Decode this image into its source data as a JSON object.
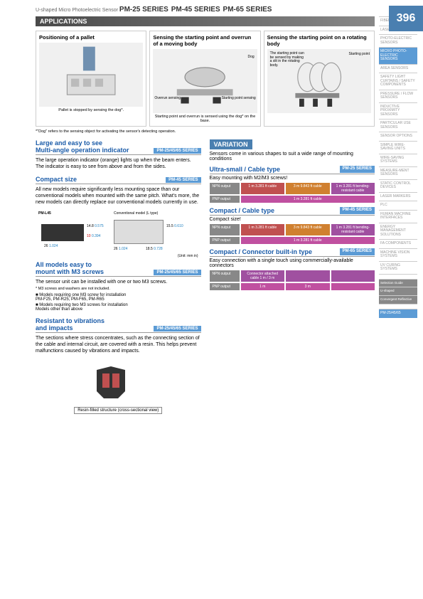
{
  "page_number": "396",
  "header_line": "U-shaped Micro Photoelectric Sensor",
  "header_series": [
    "PM-25 SERIES",
    "PM-45 SERIES",
    "PM-65 SERIES"
  ],
  "sidebar": [
    {
      "t": "FIBER SENSORS"
    },
    {
      "t": "LASER SENSORS"
    },
    {
      "t": "PHOTO-ELECTRIC SENSORS"
    },
    {
      "t": "MICRO PHOTO-ELECTRIC SENSORS",
      "hl": true
    },
    {
      "t": "AREA SENSORS"
    },
    {
      "t": "SAFETY LIGHT CURTAINS / SAFETY COMPONENTS"
    },
    {
      "t": "PRESSURE / FLOW SENSORS"
    },
    {
      "t": "INDUCTIVE PROXIMITY SENSORS"
    },
    {
      "t": "PARTICULAR USE SENSORS"
    },
    {
      "t": "SENSOR OPTIONS"
    },
    {
      "t": "SIMPLE WIRE-SAVING UNITS"
    },
    {
      "t": "WIRE-SAVING SYSTEMS"
    },
    {
      "t": "MEASURE-MENT SENSORS"
    },
    {
      "t": "STATIC CONTROL DEVICES"
    },
    {
      "t": "LASER MARKERS"
    },
    {
      "t": "PLC"
    },
    {
      "t": "HUMAN MACHINE INTERFACES"
    },
    {
      "t": "ENERGY MANAGEMENT SOLUTIONS"
    },
    {
      "t": "FA COMPONENTS"
    },
    {
      "t": "MACHINE VISION SYSTEMS"
    },
    {
      "t": "UV CURING SYSTEMS"
    },
    {
      "t": ""
    },
    {
      "t": "Selection Guide",
      "sel": true
    },
    {
      "t": "U-shaped",
      "sel": true
    },
    {
      "t": "Convergent Reflective",
      "sel": true
    },
    {
      "t": ""
    },
    {
      "t": "PM-25/45/65",
      "hl": true
    }
  ],
  "applications_header": "APPLICATIONS",
  "applications": [
    {
      "title": "Positioning of a pallet",
      "caption": "Pallet is stopped by sensing the dog*."
    },
    {
      "title": "Sensing the starting point and overrun of a moving body",
      "caption": "Starting point and overrun is sensed using the dog* on the base.",
      "labels": [
        "Dog",
        "Overrun sensing",
        "Starting point sensing"
      ]
    },
    {
      "title": "Sensing the starting point on a rotating body",
      "caption": "",
      "note": "The starting point can be sensed by making a slit in the rotating body.",
      "labels": [
        "Starting point"
      ]
    }
  ],
  "dog_footnote": "*\"Dog\" refers to the sensing object for activating the sensor's detecting operation.",
  "features_left": [
    {
      "title1": "Large and easy to see",
      "title2": "Multi-angle operation indicator",
      "tag": "PM-25/45/65 SERIES",
      "body": "The large operation indicator (orange) lights up when the beam enters. The indicator is easy to see from above and from the sides."
    },
    {
      "title1": "Compact size",
      "tag": "PM-45 SERIES",
      "body": "All new models require significantly less mounting space than our conventional models when mounted with the same pitch. What's more, the new models can directly replace our conventional models currently in use.",
      "diagram": {
        "left_label": "PM-L45",
        "right_label": "Conventional model (L type)",
        "dims": [
          {
            "v": "14.8",
            "alt": "0.575"
          },
          {
            "v": "10",
            "alt": "0.394"
          },
          {
            "v": "26",
            "alt": "1.024"
          },
          {
            "v": "15.5",
            "alt": "0.610"
          },
          {
            "v": "26",
            "alt": "1.024"
          },
          {
            "v": "18.5",
            "alt": "0.728"
          }
        ],
        "unit": "(Unit: mm in)"
      }
    },
    {
      "title1": "All models easy to",
      "title2": "mount with M3 screws",
      "tag": "PM-25/45/65 SERIES",
      "body": "The sensor unit can be installed with one or two M3 screws.",
      "subnote": "* M3 screws and washers are not included.",
      "bullets": [
        "■ Models requiring one M3 screw for installation\n   PM-F25, PM-R25, PM-F65, PM-R65",
        "■ Models requiring two M3 screws for installation\n   Models other than above"
      ]
    },
    {
      "title1": "Resistant to vibrations",
      "title2": "and impacts",
      "tag": "PM-25/45/65 SERIES",
      "body": "The sections where stress concentrates, such as the connecting section of the cable and internal circuit, are covered with a resin. This helps prevent malfunctions caused by vibrations and impacts.",
      "resin_caption": "Resin-filled structure (cross-sectional view)"
    }
  ],
  "variation": {
    "header": "VARIATION",
    "intro": "Sensors come in various shapes to suit a wide range of mounting conditions",
    "groups": [
      {
        "title": "Ultra-small / Cable type",
        "tag": "PM-25 SERIES",
        "desc": "Easy mounting with M2/M3 screws!",
        "rows": [
          {
            "lbl": "NPN output",
            "cells": [
              {
                "t": "1 m 3.281 ft cable",
                "c": "c-red"
              },
              {
                "t": "3 m 9.843 ft cable",
                "c": "c-org"
              },
              {
                "t": "1 m 3.281 ft bending-resistant cable",
                "c": "c-pur"
              }
            ]
          },
          {
            "lbl": "PNP output",
            "cells": [
              {
                "t": "1 m 3.281 ft cable",
                "c": "c-mag"
              }
            ]
          }
        ]
      },
      {
        "title": "Compact / Cable type",
        "tag": "PM-45 SERIES",
        "desc": "Compact size!",
        "rows": [
          {
            "lbl": "NPN output",
            "cells": [
              {
                "t": "1 m 3.281 ft cable",
                "c": "c-red"
              },
              {
                "t": "3 m 9.843 ft cable",
                "c": "c-org"
              },
              {
                "t": "1 m 3.281 ft bending-resistant cable",
                "c": "c-pur"
              }
            ]
          },
          {
            "lbl": "PNP output",
            "cells": [
              {
                "t": "1 m 3.281 ft cable",
                "c": "c-mag"
              }
            ]
          }
        ]
      },
      {
        "title": "Compact / Connector built-in type",
        "tag": "PM-65 SERIES",
        "desc": "Easy connection with a single touch using commercially-available connectors",
        "rows": [
          {
            "lbl": "NPN output",
            "cells": [
              {
                "t": "Connector attached cable 1 m / 3 m",
                "c": "c-pur"
              },
              {
                "t": "",
                "c": "c-pur"
              },
              {
                "t": "",
                "c": "c-pur"
              }
            ]
          },
          {
            "lbl": "PNP output",
            "cells": [
              {
                "t": "1 m",
                "c": "c-mag"
              },
              {
                "t": "3 m",
                "c": "c-mag"
              },
              {
                "t": "",
                "c": "c-mag"
              }
            ]
          }
        ]
      }
    ]
  }
}
